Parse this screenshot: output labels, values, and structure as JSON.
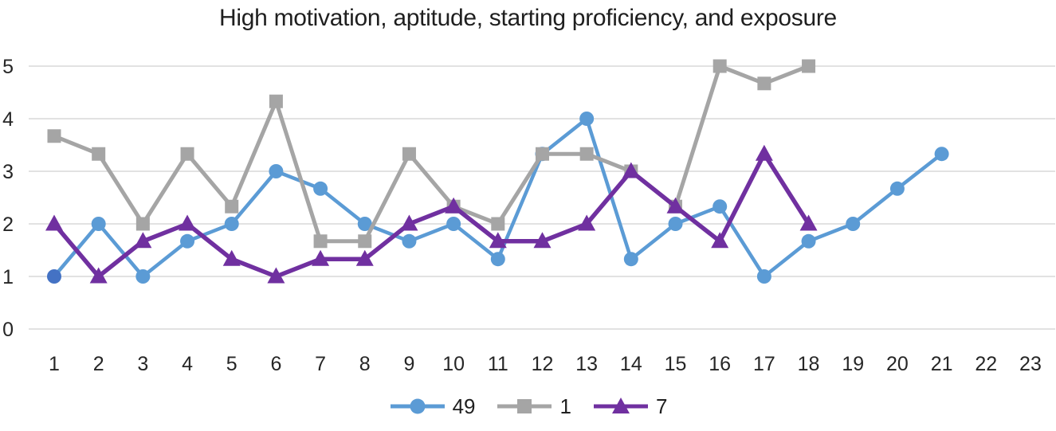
{
  "chart_data": {
    "type": "line",
    "title": "High motivation, aptitude, starting proficiency, and exposure",
    "x_categories": [
      1,
      2,
      3,
      4,
      5,
      6,
      7,
      8,
      9,
      10,
      11,
      12,
      13,
      14,
      15,
      16,
      17,
      18,
      19,
      20,
      21,
      22,
      23
    ],
    "y_ticks": [
      0,
      1,
      2,
      3,
      4,
      5
    ],
    "ylim": [
      0,
      5
    ],
    "grid": true,
    "legend_position": "bottom",
    "series": [
      {
        "name": "49",
        "color": "#5B9BD5",
        "marker": "circle",
        "line_width": 4.5,
        "point_color_overrides": {
          "0": "#4472C4"
        },
        "values": [
          1,
          2,
          1,
          1.67,
          2,
          3,
          2.67,
          2,
          1.67,
          2,
          1.33,
          3.33,
          4,
          1.33,
          2,
          2.33,
          1,
          1.67,
          2,
          2.67,
          3.33,
          null,
          null
        ]
      },
      {
        "name": "1",
        "color": "#A5A5A5",
        "marker": "square",
        "line_width": 5,
        "values": [
          3.67,
          3.33,
          2,
          3.33,
          2.33,
          4.33,
          1.67,
          1.67,
          3.33,
          2.33,
          2,
          3.33,
          3.33,
          3,
          2.33,
          5,
          4.67,
          5,
          null,
          null,
          null,
          null,
          null
        ]
      },
      {
        "name": "7",
        "color": "#7030A0",
        "marker": "triangle",
        "line_width": 5.5,
        "values": [
          2,
          1,
          1.67,
          2,
          1.33,
          1,
          1.33,
          1.33,
          2,
          2.33,
          1.67,
          1.67,
          2,
          3,
          2.33,
          1.67,
          3.33,
          2,
          null,
          null,
          null,
          null,
          null
        ]
      }
    ],
    "colors": {
      "gridline": "#D9D9D9",
      "tick_text": "#262626",
      "title_text": "#1f1f1f",
      "background": "#FFFFFF"
    }
  }
}
